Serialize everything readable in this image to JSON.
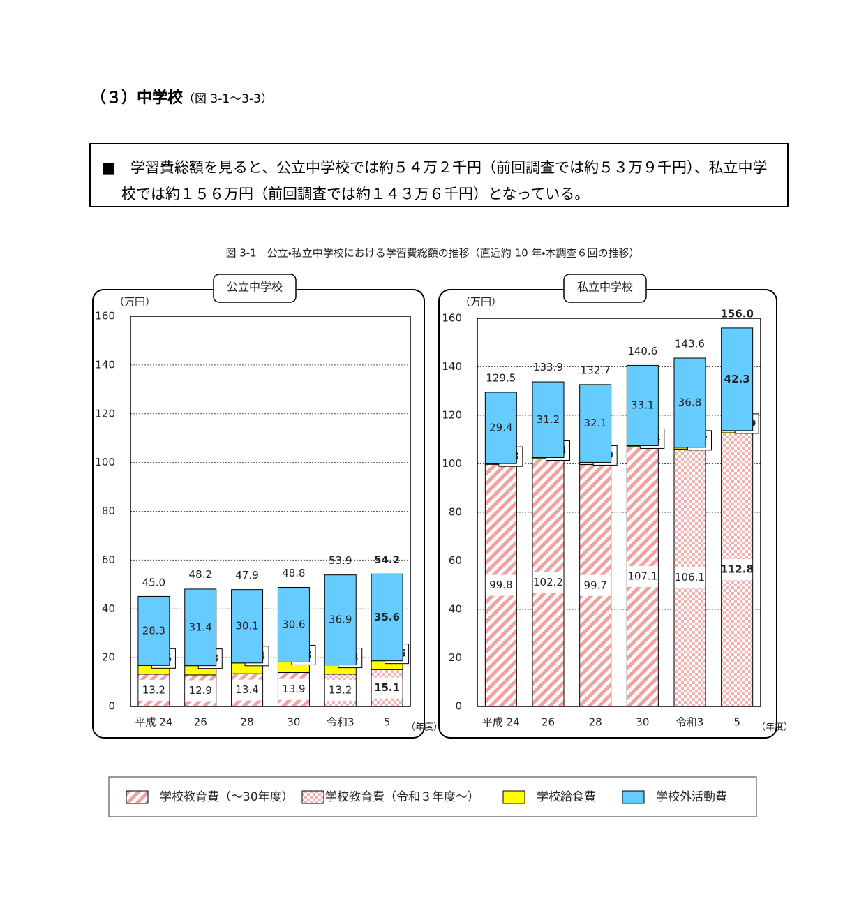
{
  "header": {
    "section": "（３）中学校",
    "ref": "（図 3-1～3-3）"
  },
  "summary": "学習費総額を見ると、公立中学校では約５４万２千円（前回調査では約５３万９千円）、私立中学校では約１５６万円（前回調査では約１４３万６千円）となっている。",
  "figure_title": "図 3-1　公立・私立中学校における学習費総額の推移（直近約 10 年・本調査６回の推移）",
  "chart_data": [
    {
      "type": "bar",
      "stacked": true,
      "title": "公立中学校",
      "y_unit": "（万円）",
      "x_unit": "（年度）",
      "categories": [
        "平成 24",
        "26",
        "28",
        "30",
        "令和3",
        "5"
      ],
      "ylim": [
        0,
        160
      ],
      "yticks": [
        0,
        20,
        40,
        60,
        80,
        100,
        120,
        140,
        160
      ],
      "grid": true,
      "series": [
        {
          "name": "学校教育費（～30年度）",
          "color": "#f4a0a0",
          "values": [
            13.2,
            12.9,
            13.4,
            13.9,
            null,
            null
          ]
        },
        {
          "name": "学校教育費（令和３年度～）",
          "color": "#f4a0a0",
          "values": [
            null,
            null,
            null,
            null,
            13.2,
            15.1
          ]
        },
        {
          "name": "学校給食費",
          "color": "#ffff00",
          "values": [
            3.6,
            3.8,
            4.4,
            4.3,
            3.8,
            3.6
          ]
        },
        {
          "name": "学校外活動費",
          "color": "#66ccff",
          "values": [
            28.3,
            31.4,
            30.1,
            30.6,
            36.9,
            35.6
          ]
        }
      ],
      "totals": {
        "values": [
          45.0,
          48.2,
          47.9,
          48.8,
          53.9,
          54.2
        ],
        "value_labels": [
          "45.0",
          "48.2",
          "47.9",
          "48.8",
          "53.9",
          "54.2"
        ]
      }
    },
    {
      "type": "bar",
      "stacked": true,
      "title": "私立中学校",
      "y_unit": "（万円）",
      "x_unit": "（年度）",
      "categories": [
        "平成 24",
        "26",
        "28",
        "30",
        "令和3",
        "5"
      ],
      "ylim": [
        0,
        160
      ],
      "yticks": [
        0,
        20,
        40,
        60,
        80,
        100,
        120,
        140,
        160
      ],
      "grid": true,
      "series": [
        {
          "color": "#f4a0a0",
          "values": [
            99.8,
            102.2,
            99.7,
            107.1,
            null,
            null
          ]
        },
        {
          "color": "#f4a0a0",
          "values": [
            null,
            null,
            null,
            null,
            106.1,
            112.8
          ]
        },
        {
          "color": "#ffff00",
          "values": [
            0.3,
            0.4,
            0.9,
            0.4,
            0.7,
            0.9
          ]
        },
        {
          "color": "#66ccff",
          "values": [
            29.4,
            31.2,
            32.1,
            33.1,
            36.8,
            42.3
          ]
        }
      ],
      "totals": {
        "values": [
          129.5,
          133.9,
          132.7,
          140.6,
          143.6,
          156.0
        ],
        "value_labels": [
          "129.5",
          "133.9",
          "132.7",
          "140.6",
          "143.6",
          "156.0"
        ]
      }
    }
  ]
}
